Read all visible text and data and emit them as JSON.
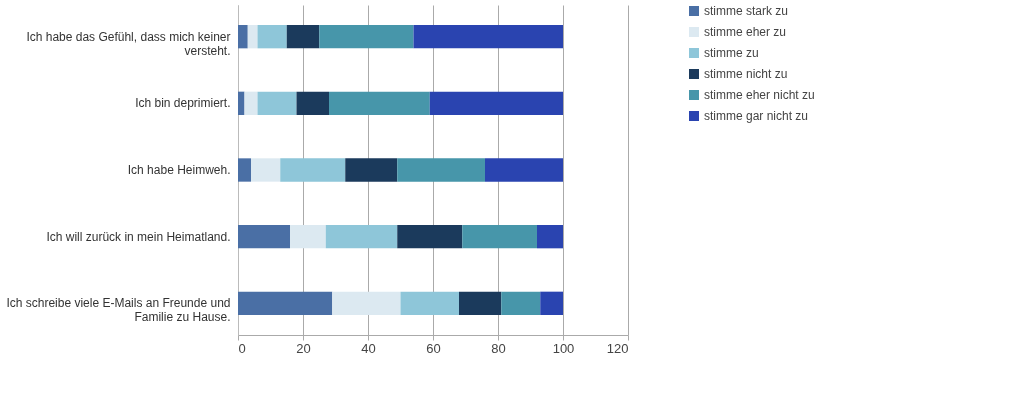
{
  "chart_data": {
    "type": "bar",
    "orientation": "horizontal",
    "stacked": true,
    "categories": [
      "Ich habe das Gefühl, dass mich keiner versteht.",
      "Ich bin deprimiert.",
      "Ich habe Heimweh.",
      "Ich will zurück in mein Heimatland.",
      "Ich schreibe viele E-Mails an Freunde und Familie zu Hause."
    ],
    "series": [
      {
        "name": "stimme stark zu",
        "color": "#4a6fa5",
        "values": [
          3,
          2,
          4,
          16,
          29
        ]
      },
      {
        "name": "stimme eher zu",
        "color": "#dce9f1",
        "values": [
          3,
          4,
          9,
          11,
          21
        ]
      },
      {
        "name": "stimme zu",
        "color": "#8ec6d9",
        "values": [
          9,
          12,
          20,
          22,
          18
        ]
      },
      {
        "name": "stimme nicht zu",
        "color": "#1b3a5c",
        "values": [
          10,
          10,
          16,
          20,
          13
        ]
      },
      {
        "name": "stimme eher nicht zu",
        "color": "#4796aa",
        "values": [
          29,
          31,
          27,
          23,
          12
        ]
      },
      {
        "name": "stimme gar nicht zu",
        "color": "#2a44b0",
        "values": [
          46,
          41,
          24,
          8,
          7
        ]
      }
    ],
    "xlim": [
      0,
      120
    ],
    "xticks": [
      0,
      20,
      40,
      60,
      80,
      100,
      120
    ],
    "grid": "x",
    "legend": "right"
  }
}
